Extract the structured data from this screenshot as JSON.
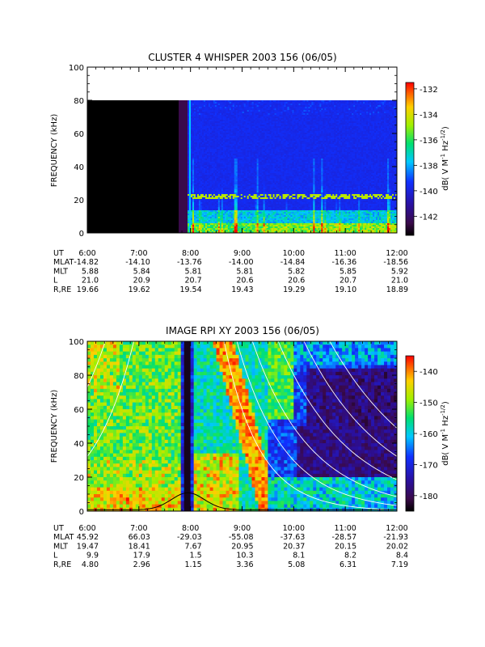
{
  "chart_data": [
    {
      "type": "heatmap",
      "title": "CLUSTER 4 WHISPER 2003 156 (06/05)",
      "ylabel": "FREQUENCY (kHz)",
      "ylim": [
        0,
        100
      ],
      "yticks": [
        "0",
        "20",
        "40",
        "60",
        "80",
        "100"
      ],
      "xticks": [
        "6:00",
        "7:00",
        "8:00",
        "9:00",
        "10:00",
        "11:00",
        "12:00"
      ],
      "colorbar": {
        "label": "dB( V M⁻¹ Hz⁻¹ᐟ²)",
        "label_parts": {
          "main": "dB( V M",
          "sup1": "-1",
          "mid": " Hz",
          "sup2": "-1/2",
          "end": ")"
        },
        "range": [
          -143.5,
          -131.5
        ],
        "ticks": [
          "-132",
          "-134",
          "-136",
          "-138",
          "-140",
          "-142"
        ]
      },
      "ephemeris": {
        "labels": [
          "UT",
          "MLAT",
          "MLT",
          "L",
          "R,RE"
        ],
        "rows": [
          [
            "6:00",
            "7:00",
            "8:00",
            "9:00",
            "10:00",
            "11:00",
            "12:00"
          ],
          [
            "-14.82",
            "-14.10",
            "-13.76",
            "-14.00",
            "-14.84",
            "-16.36",
            "-18.56"
          ],
          [
            "5.88",
            "5.84",
            "5.81",
            "5.81",
            "5.82",
            "5.85",
            "5.92"
          ],
          [
            "21.0",
            "20.9",
            "20.7",
            "20.6",
            "20.6",
            "20.7",
            "21.0"
          ],
          [
            "19.66",
            "19.62",
            "19.54",
            "19.43",
            "19.29",
            "19.10",
            "18.89"
          ]
        ]
      },
      "features": {
        "no_data_until_ut": "7:48",
        "upper_frequency_limit_khz": 80,
        "plasma_line_khz": 22
      }
    },
    {
      "type": "heatmap",
      "title": "IMAGE RPI XY 2003 156 (06/05)",
      "ylabel": "FREQUENCY (kHz)",
      "ylim": [
        0,
        100
      ],
      "yticks": [
        "0",
        "20",
        "40",
        "60",
        "80",
        "100"
      ],
      "xticks": [
        "6:00",
        "7:00",
        "8:00",
        "9:00",
        "10:00",
        "11:00",
        "12:00"
      ],
      "colorbar": {
        "label_parts": {
          "main": "dB( V M",
          "sup1": "-1",
          "mid": " Hz",
          "sup2": "-1/2",
          "end": ")"
        },
        "range": [
          -185,
          -135
        ],
        "ticks": [
          "-140",
          "-150",
          "-160",
          "-170",
          "-180"
        ]
      },
      "ephemeris": {
        "labels": [
          "UT",
          "MLAT",
          "MLT",
          "L",
          "R,RE"
        ],
        "rows": [
          [
            "6:00",
            "7:00",
            "8:00",
            "9:00",
            "10:00",
            "11:00",
            "12:00"
          ],
          [
            "45.92",
            "66.03",
            "-29.03",
            "-55.08",
            "-37.63",
            "-28.57",
            "-21.93"
          ],
          [
            "19.47",
            "18.41",
            "7.67",
            "20.95",
            "20.37",
            "20.15",
            "20.02"
          ],
          [
            "9.9",
            "17.9",
            "1.5",
            "10.3",
            "8.1",
            "8.2",
            "8.4"
          ],
          [
            "4.80",
            "2.96",
            "1.15",
            "3.36",
            "5.08",
            "6.31",
            "7.19"
          ]
        ]
      },
      "features": {
        "dark_band_ut": [
          "7:48",
          "8:02"
        ],
        "white_curves": 8,
        "black_curve_peak_khz": 10
      }
    }
  ]
}
